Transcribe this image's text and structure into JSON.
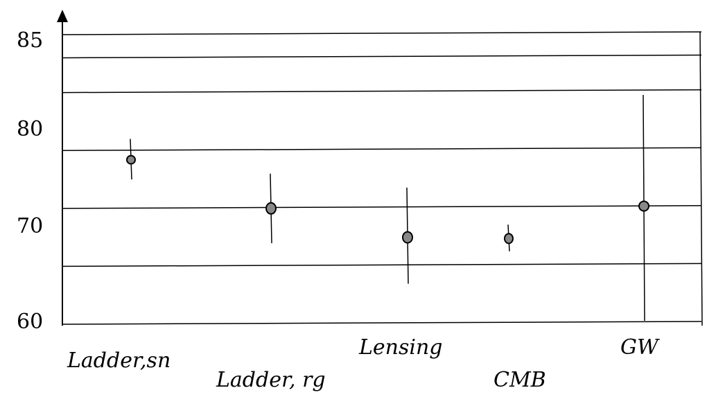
{
  "chart_data": {
    "type": "scatter",
    "title": "",
    "xlabel": "",
    "ylabel": "",
    "ylim": [
      60,
      85
    ],
    "y_ticks": [
      "60",
      "70",
      "80",
      "85"
    ],
    "grid": true,
    "grid_values": [
      60,
      65,
      70,
      75,
      80,
      83,
      85
    ],
    "point_color": "#888888",
    "categories": [
      "Ladder,sn",
      "Ladder,  rg",
      "Lensing",
      "CMB",
      "GW"
    ],
    "points": [
      {
        "label": "Ladder,sn",
        "y": 74.2,
        "low": 72.5,
        "high": 76
      },
      {
        "label": "Ladder,  rg",
        "y": 70,
        "low": 67,
        "high": 73
      },
      {
        "label": "Lensing",
        "y": 67.5,
        "low": 63.5,
        "high": 71.8
      },
      {
        "label": "CMB",
        "y": 67.4,
        "low": 66.3,
        "high": 68.6
      },
      {
        "label": "GW",
        "y": 70.2,
        "low": 60.3,
        "high": 79.8
      }
    ]
  }
}
